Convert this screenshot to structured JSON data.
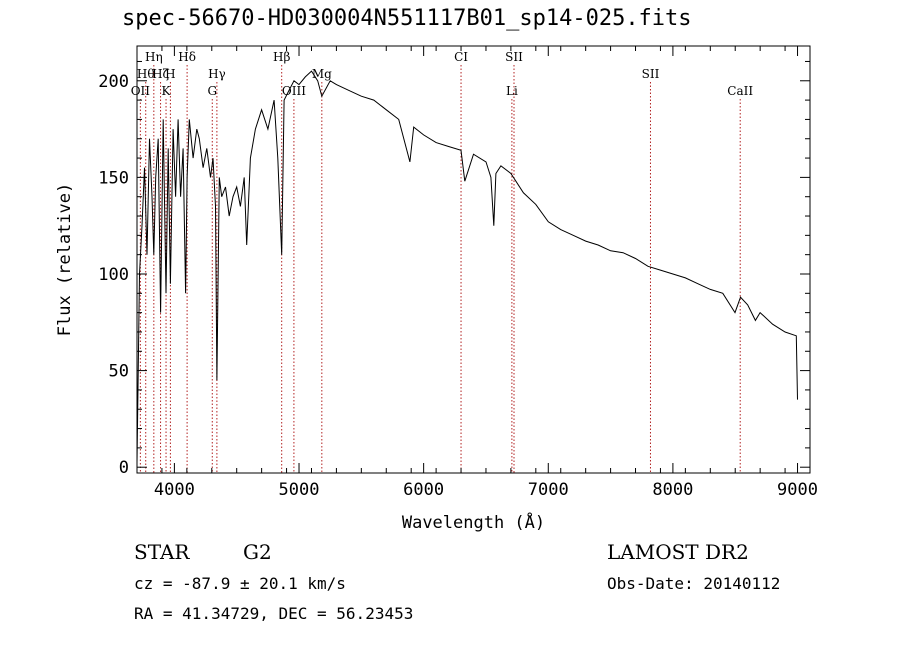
{
  "title": "spec-56670-HD030004N551117B01_sp14-025.fits",
  "info": {
    "object_type": "STAR",
    "subclass": "G2",
    "survey": "LAMOST DR2",
    "cz": "cz = -87.9 ± 20.1 km/s",
    "obs_date": "Obs-Date: 20140112",
    "coords": "RA =  41.34729, DEC =  56.23453"
  },
  "chart_data": {
    "type": "line",
    "title": "spec-56670-HD030004N551117B01_sp14-025.fits",
    "xlabel": "Wavelength (Å)",
    "ylabel": "Flux (relative)",
    "xlim": [
      3700,
      9100
    ],
    "ylim": [
      -3,
      218
    ],
    "x_ticks": [
      4000,
      5000,
      6000,
      7000,
      8000,
      9000
    ],
    "y_ticks": [
      0,
      50,
      100,
      150,
      200
    ],
    "grid": false,
    "line_color": "#000000",
    "marker_color": "#b22222",
    "series": [
      {
        "x": [
          3700,
          3720,
          3740,
          3760,
          3780,
          3800,
          3820,
          3835,
          3850,
          3870,
          3889,
          3910,
          3933,
          3950,
          3968,
          3990,
          4010,
          4030,
          4050,
          4070,
          4090,
          4102,
          4120,
          4150,
          4180,
          4200,
          4230,
          4260,
          4290,
          4310,
          4330,
          4341,
          4360,
          4380,
          4410,
          4440,
          4470,
          4500,
          4530,
          4560,
          4580,
          4610,
          4650,
          4700,
          4750,
          4800,
          4830,
          4861,
          4880,
          4920,
          4960,
          5000,
          5050,
          5100,
          5150,
          5183,
          5250,
          5300,
          5400,
          5500,
          5600,
          5700,
          5800,
          5890,
          5920,
          6000,
          6100,
          6200,
          6300,
          6330,
          6400,
          6500,
          6540,
          6563,
          6580,
          6620,
          6700,
          6800,
          6900,
          7000,
          7100,
          7200,
          7300,
          7400,
          7500,
          7600,
          7700,
          7800,
          7900,
          8000,
          8100,
          8200,
          8300,
          8400,
          8498,
          8542,
          8600,
          8662,
          8700,
          8800,
          8900,
          8990,
          9000
        ],
        "y": [
          2,
          100,
          125,
          155,
          110,
          170,
          140,
          110,
          150,
          170,
          80,
          180,
          90,
          165,
          95,
          175,
          140,
          180,
          140,
          165,
          90,
          150,
          180,
          160,
          175,
          170,
          155,
          165,
          150,
          160,
          135,
          45,
          150,
          140,
          145,
          130,
          140,
          145,
          135,
          150,
          115,
          160,
          175,
          185,
          175,
          190,
          160,
          110,
          190,
          195,
          200,
          198,
          202,
          205,
          200,
          192,
          200,
          198,
          195,
          192,
          190,
          185,
          180,
          158,
          176,
          172,
          168,
          166,
          164,
          148,
          162,
          158,
          150,
          125,
          152,
          156,
          152,
          142,
          136,
          127,
          123,
          120,
          117,
          115,
          112,
          111,
          108,
          104,
          102,
          100,
          98,
          95,
          92,
          90,
          80,
          88,
          84,
          76,
          80,
          74,
          70,
          68,
          35
        ]
      }
    ],
    "lines": [
      {
        "wl": 3727,
        "name": "OII",
        "row": 3
      },
      {
        "wl": 3770,
        "name": "Hθ",
        "row": 2
      },
      {
        "wl": 3835,
        "name": "Hη",
        "row": 1
      },
      {
        "wl": 3889,
        "name": "Hζ",
        "row": 2
      },
      {
        "wl": 3933,
        "name": "K",
        "row": 3
      },
      {
        "wl": 3968,
        "name": "H",
        "row": 2
      },
      {
        "wl": 4102,
        "name": "Hδ",
        "row": 1
      },
      {
        "wl": 4304,
        "name": "G",
        "row": 3
      },
      {
        "wl": 4341,
        "name": "Hγ",
        "row": 2
      },
      {
        "wl": 4861,
        "name": "Hβ",
        "row": 1
      },
      {
        "wl": 4959,
        "name": "OIII",
        "row": 3
      },
      {
        "wl": 5183,
        "name": "Mg",
        "row": 2
      },
      {
        "wl": 6300,
        "name": "CI",
        "row": 1
      },
      {
        "wl": 6708,
        "name": "Li",
        "row": 3
      },
      {
        "wl": 6725,
        "name": "SII",
        "row": 1
      },
      {
        "wl": 7820,
        "name": "SII",
        "row": 2
      },
      {
        "wl": 8540,
        "name": "CaII",
        "row": 3
      }
    ]
  }
}
